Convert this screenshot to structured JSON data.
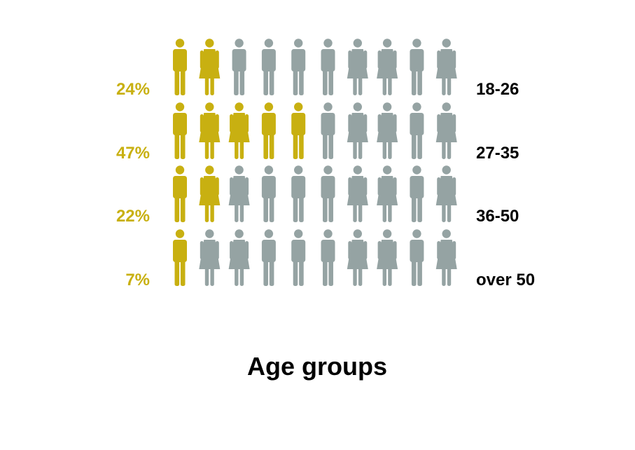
{
  "chart_data": {
    "type": "pictogram",
    "title": "Age groups",
    "icons_per_row": 10,
    "rows": [
      {
        "category": "18-26",
        "percent_label": "24%",
        "value": 24,
        "highlighted": 2,
        "icons": [
          "male",
          "female",
          "male",
          "male",
          "male",
          "male",
          "female",
          "female",
          "male",
          "female"
        ]
      },
      {
        "category": "27-35",
        "percent_label": "47%",
        "value": 47,
        "highlighted": 5,
        "icons": [
          "male",
          "female",
          "female",
          "male",
          "male",
          "male",
          "female",
          "female",
          "male",
          "female"
        ]
      },
      {
        "category": "36-50",
        "percent_label": "22%",
        "value": 22,
        "highlighted": 2,
        "icons": [
          "male",
          "female",
          "female",
          "male",
          "male",
          "male",
          "female",
          "female",
          "male",
          "female"
        ]
      },
      {
        "category": "over 50",
        "percent_label": "7%",
        "value": 7,
        "highlighted": 1,
        "icons": [
          "male",
          "female",
          "female",
          "male",
          "male",
          "male",
          "female",
          "female",
          "male",
          "female"
        ]
      }
    ],
    "colors": {
      "highlight": "#c8b011",
      "base": "#95a3a3",
      "category_text": "#000000"
    }
  }
}
